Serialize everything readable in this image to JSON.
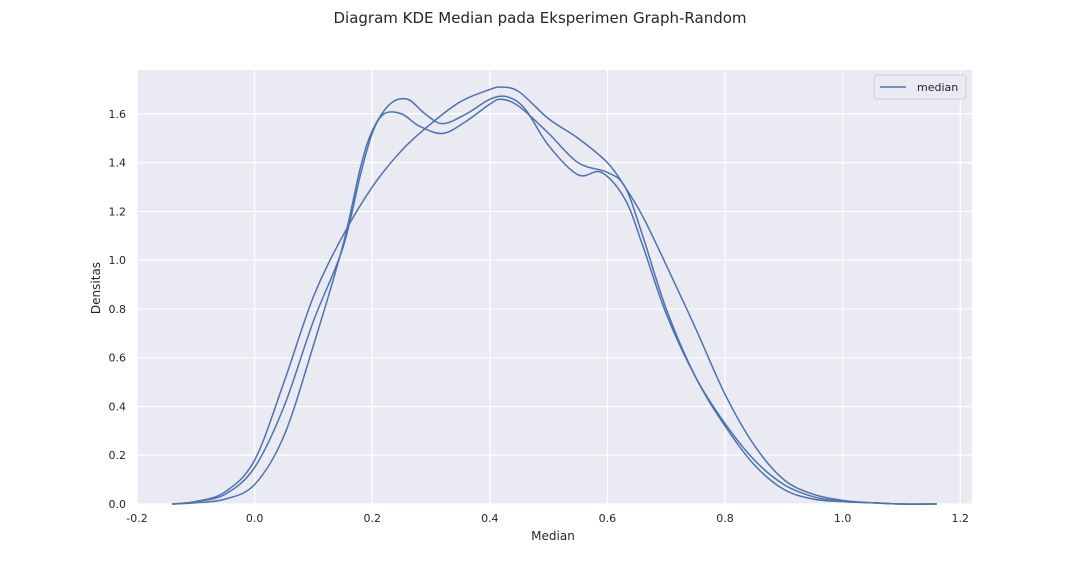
{
  "chart_data": {
    "type": "line",
    "title": "Diagram KDE Median pada Eksperimen Graph-Random",
    "xlabel": "Median",
    "ylabel": "Densitas",
    "xlim": [
      -0.2,
      1.22
    ],
    "ylim": [
      0,
      1.78
    ],
    "xticks": [
      "-0.2",
      "0.0",
      "0.2",
      "0.4",
      "0.6",
      "0.8",
      "1.0",
      "1.2"
    ],
    "yticks": [
      "0.0",
      "0.2",
      "0.4",
      "0.6",
      "0.8",
      "1.0",
      "1.2",
      "1.4",
      "1.6"
    ],
    "grid": true,
    "legend": {
      "position": "top-right",
      "entries": [
        "median"
      ]
    },
    "line_color": "#4c72b0",
    "series": [
      {
        "name": "median",
        "x": [
          -0.14,
          -0.1,
          -0.05,
          0.0,
          0.05,
          0.1,
          0.15,
          0.18,
          0.2,
          0.22,
          0.25,
          0.28,
          0.32,
          0.36,
          0.4,
          0.42,
          0.45,
          0.5,
          0.55,
          0.6,
          0.63,
          0.66,
          0.7,
          0.75,
          0.8,
          0.85,
          0.9,
          0.95,
          1.0,
          1.05,
          1.1,
          1.16
        ],
        "values": [
          0.0,
          0.01,
          0.04,
          0.15,
          0.4,
          0.75,
          1.05,
          1.35,
          1.52,
          1.6,
          1.6,
          1.55,
          1.52,
          1.57,
          1.64,
          1.66,
          1.63,
          1.52,
          1.4,
          1.36,
          1.3,
          1.1,
          0.8,
          0.52,
          0.32,
          0.16,
          0.06,
          0.02,
          0.01,
          0.005,
          0.0,
          0.0
        ]
      },
      {
        "name": "",
        "x": [
          -0.14,
          -0.1,
          -0.05,
          0.0,
          0.05,
          0.1,
          0.15,
          0.18,
          0.2,
          0.23,
          0.26,
          0.29,
          0.32,
          0.36,
          0.4,
          0.43,
          0.46,
          0.5,
          0.55,
          0.59,
          0.63,
          0.66,
          0.7,
          0.75,
          0.8,
          0.85,
          0.9,
          0.95,
          1.0,
          1.05,
          1.1,
          1.16
        ],
        "values": [
          0.0,
          0.005,
          0.02,
          0.08,
          0.28,
          0.65,
          1.06,
          1.38,
          1.53,
          1.64,
          1.66,
          1.6,
          1.56,
          1.6,
          1.66,
          1.67,
          1.62,
          1.47,
          1.35,
          1.36,
          1.25,
          1.06,
          0.78,
          0.52,
          0.33,
          0.18,
          0.08,
          0.03,
          0.01,
          0.005,
          0.0,
          0.0
        ]
      },
      {
        "name": "",
        "x": [
          -0.14,
          -0.1,
          -0.05,
          0.0,
          0.05,
          0.1,
          0.15,
          0.2,
          0.25,
          0.3,
          0.35,
          0.4,
          0.42,
          0.45,
          0.5,
          0.55,
          0.6,
          0.63,
          0.66,
          0.7,
          0.75,
          0.8,
          0.85,
          0.9,
          0.95,
          1.0,
          1.05,
          1.1,
          1.16
        ],
        "values": [
          0.0,
          0.01,
          0.05,
          0.18,
          0.5,
          0.85,
          1.1,
          1.3,
          1.45,
          1.56,
          1.65,
          1.7,
          1.71,
          1.69,
          1.58,
          1.5,
          1.4,
          1.3,
          1.18,
          0.98,
          0.72,
          0.45,
          0.24,
          0.1,
          0.04,
          0.015,
          0.005,
          0.0,
          0.0
        ]
      }
    ]
  }
}
